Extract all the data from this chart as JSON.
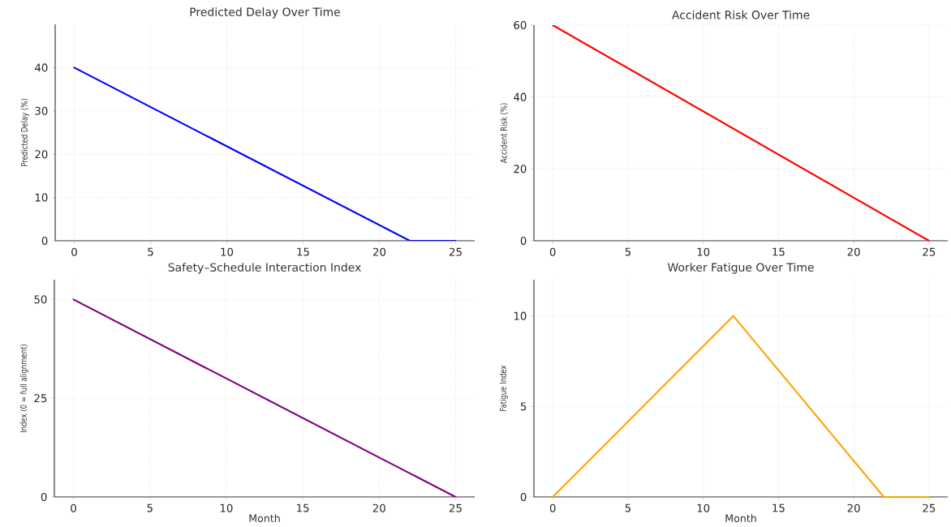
{
  "chart_data": [
    {
      "type": "line",
      "title": "Predicted Delay Over Time",
      "ylabel": "Predicted Delay (%)",
      "x": [
        0,
        22,
        25
      ],
      "series": [
        {
          "color": "#0000ff",
          "values": [
            40,
            0,
            0
          ]
        }
      ],
      "xlim": [
        -1.25,
        26.25
      ],
      "ylim": [
        0,
        50
      ],
      "xticks": [
        0,
        5,
        10,
        15,
        20,
        25
      ],
      "yticks": [
        0,
        10,
        20,
        30,
        40
      ],
      "grid": true
    },
    {
      "type": "line",
      "title": "Accident Risk Over Time",
      "ylabel": "Accident Risk (%)",
      "x": [
        0,
        25
      ],
      "series": [
        {
          "color": "#ff0000",
          "values": [
            60,
            0
          ]
        }
      ],
      "xlim": [
        -1.25,
        26.25
      ],
      "ylim": [
        0,
        60
      ],
      "xticks": [
        0,
        5,
        10,
        15,
        20,
        25
      ],
      "yticks": [
        0,
        20,
        40,
        60
      ],
      "grid": true
    },
    {
      "type": "line",
      "title": "Safety–Schedule Interaction Index",
      "xlabel": "Month",
      "ylabel": "Index (0 = full alignment)",
      "x": [
        0,
        25
      ],
      "series": [
        {
          "color": "#800080",
          "values": [
            50,
            0
          ]
        }
      ],
      "xlim": [
        -1.25,
        26.25
      ],
      "ylim": [
        0,
        55
      ],
      "xticks": [
        0,
        5,
        10,
        15,
        20,
        25
      ],
      "yticks": [
        0,
        25,
        50
      ],
      "grid": true
    },
    {
      "type": "line",
      "title": "Worker Fatigue Over Time",
      "xlabel": "Month",
      "ylabel": "Fatigue Index",
      "x": [
        0,
        12,
        22,
        25
      ],
      "series": [
        {
          "color": "#ffa500",
          "values": [
            0,
            10,
            0,
            0
          ]
        }
      ],
      "xlim": [
        -1.25,
        26.25
      ],
      "ylim": [
        0,
        12
      ],
      "xticks": [
        0,
        5,
        10,
        15,
        20,
        25
      ],
      "yticks": [
        0,
        5,
        10
      ],
      "grid": true
    }
  ]
}
